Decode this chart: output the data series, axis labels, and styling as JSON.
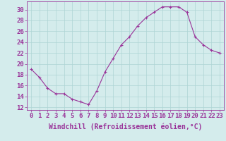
{
  "x": [
    0,
    1,
    2,
    3,
    4,
    5,
    6,
    7,
    8,
    9,
    10,
    11,
    12,
    13,
    14,
    15,
    16,
    17,
    18,
    19,
    20,
    21,
    22,
    23
  ],
  "y": [
    19,
    17.5,
    15.5,
    14.5,
    14.5,
    13.5,
    13,
    12.5,
    15,
    18.5,
    21,
    23.5,
    25,
    27,
    28.5,
    29.5,
    30.5,
    30.5,
    30.5,
    29.5,
    25,
    23.5,
    22.5,
    22
  ],
  "line_color": "#993399",
  "marker": "+",
  "bg_color": "#d4ecec",
  "grid_color": "#aed4d4",
  "xlabel": "Windchill (Refroidissement éolien,°C)",
  "ylabel_ticks": [
    12,
    14,
    16,
    18,
    20,
    22,
    24,
    26,
    28,
    30
  ],
  "xlim": [
    -0.5,
    23.5
  ],
  "ylim": [
    11.5,
    31.5
  ],
  "tick_color": "#993399",
  "label_color": "#993399",
  "font_size": 6.5,
  "xlabel_fontsize": 7
}
